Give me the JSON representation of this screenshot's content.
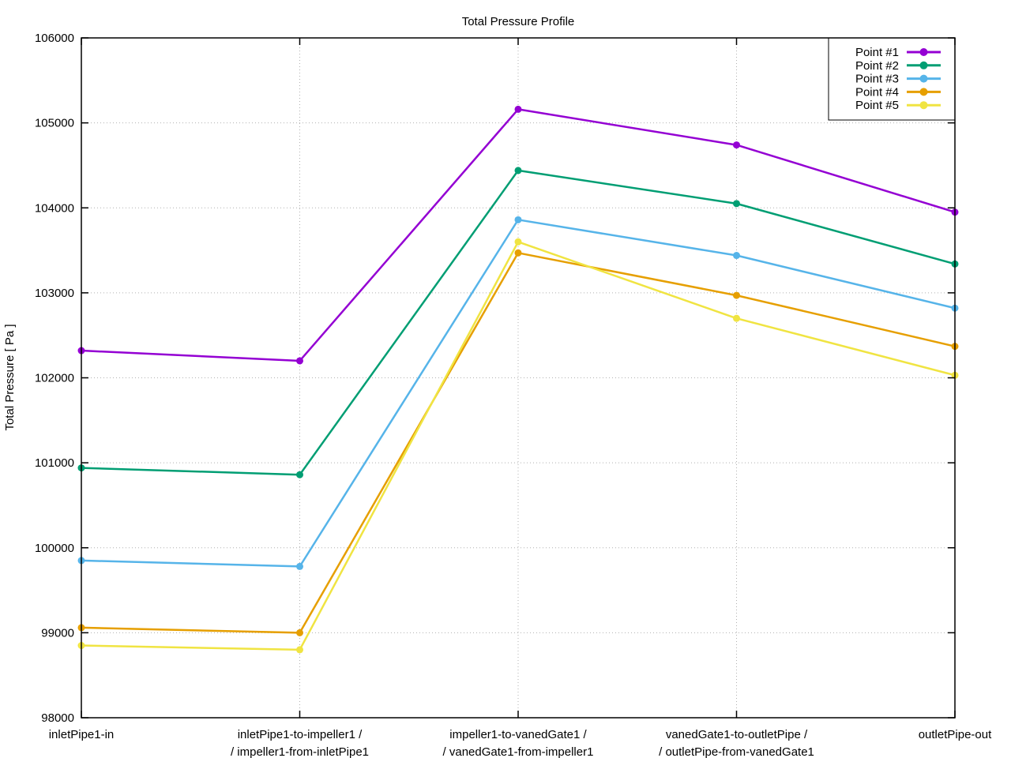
{
  "chart_data": {
    "type": "line",
    "title": "Total Pressure Profile",
    "ylabel": "Total Pressure [ Pa ]",
    "xlabel": "",
    "ylim": [
      98000,
      106000
    ],
    "ytick_step": 1000,
    "yticks": [
      98000,
      99000,
      100000,
      101000,
      102000,
      103000,
      104000,
      105000,
      106000
    ],
    "grid": true,
    "legend_position": "top-right-inside-box",
    "marker": "filled-circle",
    "categories": [
      [
        "inletPipe1-in"
      ],
      [
        "inletPipe1-to-impeller1 /",
        "/ impeller1-from-inletPipe1"
      ],
      [
        "impeller1-to-vanedGate1 /",
        "/ vanedGate1-from-impeller1"
      ],
      [
        "vanedGate1-to-outletPipe /",
        "/ outletPipe-from-vanedGate1"
      ],
      [
        "outletPipe-out"
      ]
    ],
    "series": [
      {
        "name": "Point #1",
        "color": "#9400d3",
        "values": [
          102320,
          102200,
          105160,
          104740,
          103950
        ]
      },
      {
        "name": "Point #2",
        "color": "#009e73",
        "values": [
          100940,
          100860,
          104440,
          104050,
          103340
        ]
      },
      {
        "name": "Point #3",
        "color": "#56b4e9",
        "values": [
          99850,
          99780,
          103860,
          103440,
          102820
        ]
      },
      {
        "name": "Point #4",
        "color": "#e69f00",
        "values": [
          99060,
          99000,
          103470,
          102970,
          102370
        ]
      },
      {
        "name": "Point #5",
        "color": "#f0e442",
        "values": [
          98850,
          98800,
          103600,
          102700,
          102030
        ]
      }
    ],
    "axis_color": "#000000",
    "grid_color": "#b0b0b0",
    "background_color": "#ffffff"
  }
}
